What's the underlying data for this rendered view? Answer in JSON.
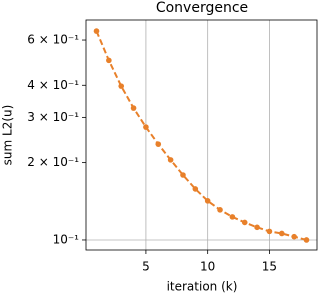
{
  "chart_data": {
    "type": "line",
    "title": "Convergence",
    "xlabel": "iteration (k)",
    "ylabel": "sum L2(u)",
    "x": [
      1,
      2,
      3,
      4,
      5,
      6,
      7,
      8,
      9,
      10,
      11,
      12,
      13,
      14,
      15,
      16,
      17,
      18
    ],
    "values": [
      0.65,
      0.5,
      0.397,
      0.326,
      0.275,
      0.236,
      0.205,
      0.179,
      0.158,
      0.142,
      0.131,
      0.123,
      0.117,
      0.112,
      0.108,
      0.106,
      0.103,
      0.1
    ],
    "color": "#e8802a",
    "line_style": "dashed",
    "xlim": [
      0.15,
      18.85
    ],
    "xticks": [
      5,
      10,
      15
    ],
    "ylim": [
      0.0914,
      0.718
    ],
    "yscale": "log",
    "yticks": [
      {
        "value": 0.1,
        "label": "10⁻¹"
      },
      {
        "value": 0.2,
        "label": "2 × 10⁻¹"
      },
      {
        "value": 0.3,
        "label": "3 × 10⁻¹"
      },
      {
        "value": 0.4,
        "label": "4 × 10⁻¹"
      },
      {
        "value": 0.6,
        "label": "6 × 10⁻¹"
      }
    ],
    "xgrid_ticks": [
      5,
      10,
      15
    ],
    "ygrid_ticks": [
      0.1
    ]
  }
}
